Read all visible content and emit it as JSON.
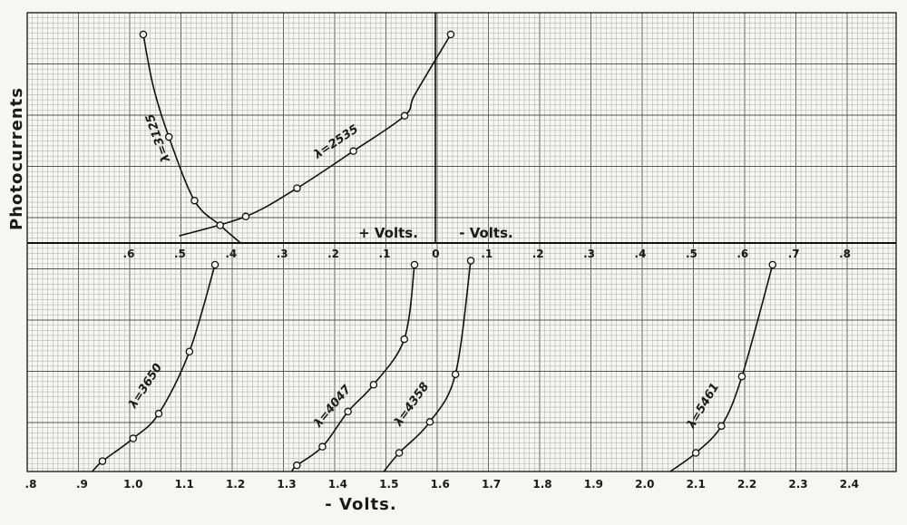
{
  "chart_data": {
    "type": "line",
    "title": "",
    "ylabel": "Photocurrents",
    "xlabel_bottom": "- Volts.",
    "upper_axis_labels": {
      "positive": "+ Volts.",
      "negative": "- Volts."
    },
    "upper_x_ticks": [
      ".6",
      ".5",
      ".4",
      ".3",
      ".2",
      ".1",
      "0",
      ".1",
      ".2",
      ".3",
      ".4",
      ".5",
      ".6",
      ".7",
      ".8"
    ],
    "lower_x_ticks": [
      ".8",
      ".9",
      "1.0",
      "1.1",
      "1.2",
      "1.3",
      "1.4",
      "1.5",
      "1.6",
      "1.7",
      "1.8",
      "1.9",
      "2.0",
      "2.1",
      "2.2",
      "2.3",
      "2.4"
    ],
    "grid": true,
    "upper_series": [
      {
        "name": "λ=2535",
        "x": [
          0.5,
          0.37,
          0.27,
          0.16,
          0.06,
          0.04,
          -0.03
        ],
        "y": [
          0.04,
          0.15,
          0.31,
          0.52,
          0.72,
          0.84,
          1.18
        ],
        "markers": [
          false,
          true,
          true,
          true,
          true,
          false,
          true
        ]
      },
      {
        "name": "λ=3125",
        "x": [
          0.38,
          0.42,
          0.47,
          0.52,
          0.55,
          0.57
        ],
        "y": [
          0.0,
          0.1,
          0.24,
          0.6,
          0.88,
          1.18
        ],
        "markers": [
          false,
          true,
          true,
          true,
          false,
          true
        ]
      }
    ],
    "lower_series": [
      {
        "name": "λ=3650",
        "x": [
          0.92,
          0.94,
          1.0,
          1.05,
          1.11,
          1.16
        ],
        "y": [
          0.0,
          0.05,
          0.16,
          0.28,
          0.58,
          1.0
        ],
        "markers": [
          false,
          true,
          true,
          true,
          true,
          true
        ]
      },
      {
        "name": "λ=4047",
        "x": [
          1.31,
          1.32,
          1.37,
          1.42,
          1.47,
          1.53,
          1.55
        ],
        "y": [
          0.0,
          0.03,
          0.12,
          0.29,
          0.42,
          0.64,
          1.0
        ],
        "markers": [
          false,
          true,
          true,
          true,
          true,
          true,
          true
        ]
      },
      {
        "name": "λ=4358",
        "x": [
          1.49,
          1.52,
          1.58,
          1.63,
          1.66
        ],
        "y": [
          0.0,
          0.09,
          0.24,
          0.47,
          1.02
        ],
        "markers": [
          false,
          true,
          true,
          true,
          true
        ]
      },
      {
        "name": "λ=5461",
        "x": [
          2.05,
          2.1,
          2.15,
          2.19,
          2.25
        ],
        "y": [
          0.0,
          0.09,
          0.22,
          0.46,
          1.0
        ],
        "markers": [
          false,
          true,
          true,
          true,
          true
        ]
      }
    ]
  }
}
